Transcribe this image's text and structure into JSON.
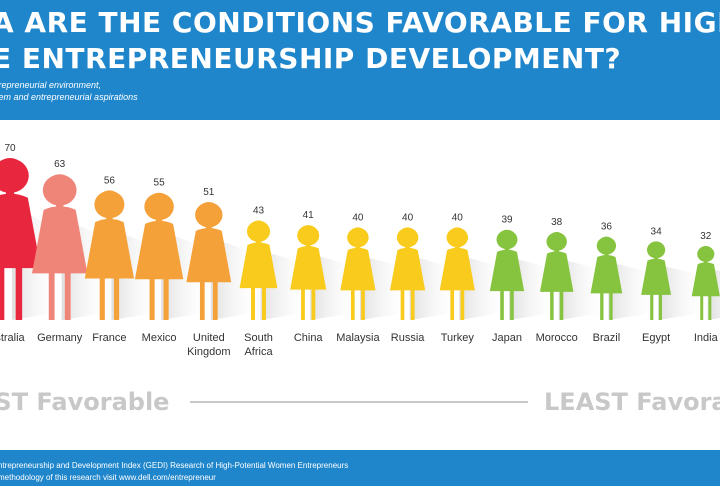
{
  "header": {
    "title_line1": "A ARE THE CONDITIONS FAVORABLE FOR HIGH-POTENTI",
    "title_line2": "E ENTREPRENEURSHIP DEVELOPMENT?",
    "subtitle_line1": "trepreneurial environment,",
    "subtitle_line2": "tem and entrepreneurial aspirations"
  },
  "scale": {
    "most_label": "OST Favorable",
    "least_label": "LEAST Favorab"
  },
  "footer": {
    "line1": "ntrepreneurship and Development Index (GEDI) Research of High-Potential Women Entrepreneurs",
    "line2": "methodology of this research visit www.dell.com/entrepreneur"
  },
  "colors": {
    "header_bg": "#1f86cc",
    "label_text": "#333333",
    "scale_text": "#c8c8c8"
  },
  "chart_data": {
    "type": "bar",
    "title": "A ARE THE CONDITIONS FAVORABLE FOR HIGH-POTENTI E ENTREPRENEURSHIP DEVELOPMENT?",
    "xlabel": "",
    "ylabel": "",
    "categories": [
      [
        "stralia"
      ],
      [
        "Germany"
      ],
      [
        "France"
      ],
      [
        "Mexico"
      ],
      [
        "United",
        "Kingdom"
      ],
      [
        "South",
        "Africa"
      ],
      [
        "China"
      ],
      [
        "Malaysia"
      ],
      [
        "Russia"
      ],
      [
        "Turkey"
      ],
      [
        "Japan"
      ],
      [
        "Morocco"
      ],
      [
        "Brazil"
      ],
      [
        "Egypt"
      ],
      [
        "India"
      ]
    ],
    "values": [
      70,
      63,
      56,
      55,
      51,
      43,
      41,
      40,
      40,
      40,
      39,
      38,
      36,
      34,
      32
    ],
    "colors": [
      "#e8273f",
      "#ef8579",
      "#f5a13a",
      "#f5a13a",
      "#f5a13a",
      "#f8cb1c",
      "#f8cb1c",
      "#f8cb1c",
      "#f8cb1c",
      "#f8cb1c",
      "#86c440",
      "#86c440",
      "#86c440",
      "#86c440",
      "#86c440"
    ],
    "ylim": [
      0,
      70
    ]
  }
}
